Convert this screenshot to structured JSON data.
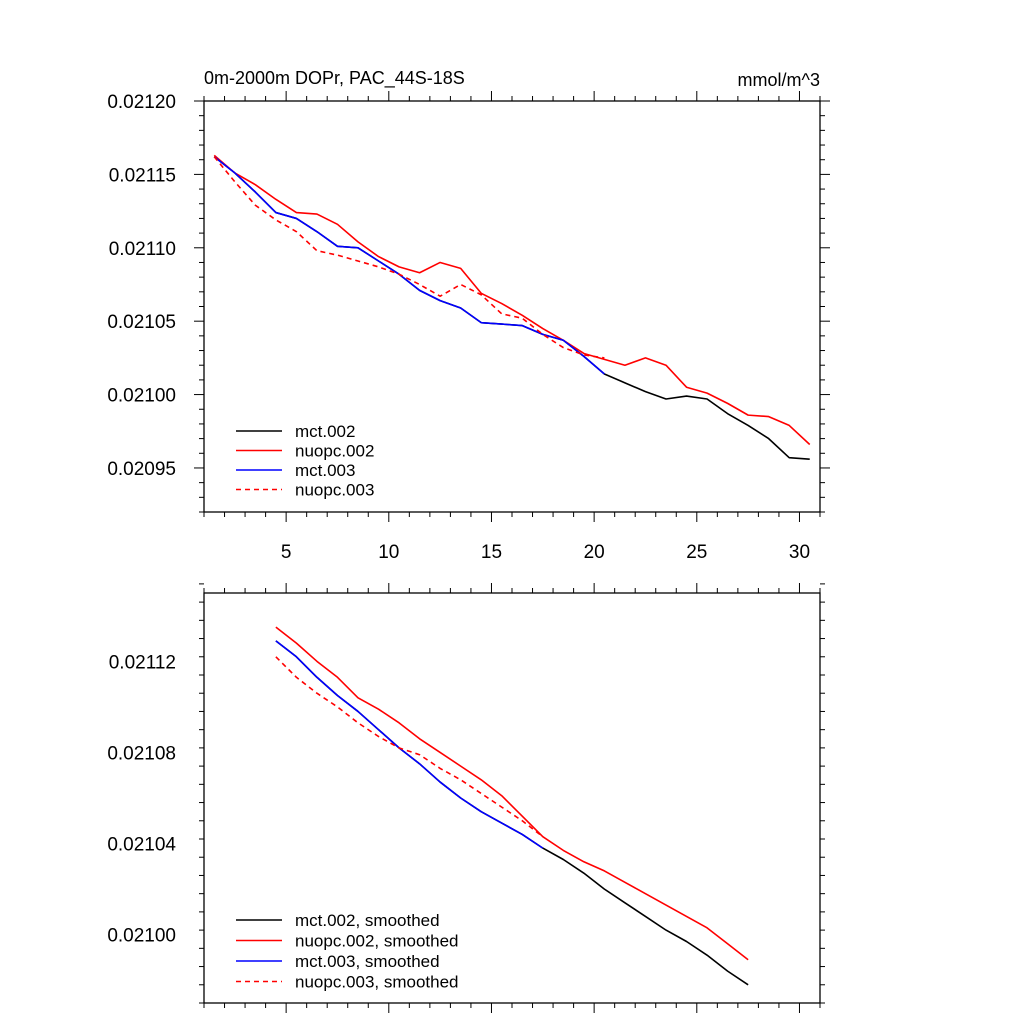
{
  "chart_data": [
    {
      "type": "line",
      "title": "0m-2000m DOPr, PAC_44S-18S",
      "units": "mmol/m^3",
      "xlabel": "",
      "ylabel": "",
      "xlim": [
        1,
        31
      ],
      "ylim": [
        0.02092,
        0.0212
      ],
      "x_ticks": [
        5,
        10,
        15,
        20,
        25,
        30
      ],
      "y_ticks": [
        0.02095,
        0.021,
        0.02105,
        0.0211,
        0.02115,
        0.0212
      ],
      "y_tick_labels": [
        "0.02095",
        "0.02100",
        "0.02105",
        "0.02110",
        "0.02115",
        "0.02120"
      ],
      "legend_position": "bottom-left",
      "series": [
        {
          "name": "mct.002",
          "color": "#000000",
          "dash": "solid",
          "x": [
            1.5,
            2.5,
            3.5,
            4.5,
            5.5,
            6.5,
            7.5,
            8.5,
            9.5,
            10.5,
            11.5,
            12.5,
            13.5,
            14.5,
            15.5,
            16.5,
            17.5,
            18.5,
            19.5,
            20.5,
            21.5,
            22.5,
            23.5,
            24.5,
            25.5,
            26.5,
            27.5,
            28.5,
            29.5,
            30.5
          ],
          "values": [
            0.021162,
            0.021151,
            0.021138,
            0.021124,
            0.02112,
            0.021111,
            0.021101,
            0.0211,
            0.021091,
            0.021082,
            0.021071,
            0.021064,
            0.021059,
            0.021049,
            0.021048,
            0.021047,
            0.021041,
            0.021037,
            0.021026,
            0.021014,
            0.021008,
            0.021002,
            0.020997,
            0.020999,
            0.020997,
            0.020987,
            0.020979,
            0.02097,
            0.020957,
            0.020956
          ]
        },
        {
          "name": "nuopc.002",
          "color": "#ff0000",
          "dash": "solid",
          "x": [
            1.5,
            2.5,
            3.5,
            4.5,
            5.5,
            6.5,
            7.5,
            8.5,
            9.5,
            10.5,
            11.5,
            12.5,
            13.5,
            14.5,
            15.5,
            16.5,
            17.5,
            18.5,
            19.5,
            20.5,
            21.5,
            22.5,
            23.5,
            24.5,
            25.5,
            26.5,
            27.5,
            28.5,
            29.5,
            30.5
          ],
          "values": [
            0.021163,
            0.021151,
            0.021143,
            0.021133,
            0.021124,
            0.021123,
            0.021116,
            0.021104,
            0.021094,
            0.021087,
            0.021083,
            0.02109,
            0.021086,
            0.021069,
            0.021062,
            0.021054,
            0.021045,
            0.021037,
            0.021028,
            0.021024,
            0.02102,
            0.021025,
            0.02102,
            0.021005,
            0.021001,
            0.020994,
            0.020986,
            0.020985,
            0.020979,
            0.020966
          ]
        },
        {
          "name": "mct.003",
          "color": "#0000ff",
          "dash": "solid",
          "x": [
            1.5,
            2.5,
            3.5,
            4.5,
            5.5,
            6.5,
            7.5,
            8.5,
            9.5,
            10.5,
            11.5,
            12.5,
            13.5,
            14.5,
            15.5,
            16.5,
            17.5,
            18.5,
            19.5,
            20.5
          ],
          "values": [
            0.021162,
            0.021151,
            0.021138,
            0.021124,
            0.02112,
            0.021111,
            0.021101,
            0.0211,
            0.021091,
            0.021082,
            0.021071,
            0.021064,
            0.021059,
            0.021049,
            0.021048,
            0.021047,
            0.021041,
            0.021037,
            0.021026,
            0.021014
          ]
        },
        {
          "name": "nuopc.003",
          "color": "#ff0000",
          "dash": "dashed",
          "x": [
            1.5,
            2.5,
            3.5,
            4.5,
            5.5,
            6.5,
            7.5,
            8.5,
            9.5,
            10.5,
            11.5,
            12.5,
            13.5,
            14.5,
            15.5,
            16.5,
            17.5,
            18.5,
            19.5,
            20.5
          ],
          "values": [
            0.021162,
            0.021145,
            0.021129,
            0.021119,
            0.021111,
            0.021098,
            0.021095,
            0.021091,
            0.021087,
            0.021082,
            0.021075,
            0.021067,
            0.021075,
            0.021068,
            0.021055,
            0.021052,
            0.021041,
            0.021032,
            0.021027,
            0.021025
          ]
        }
      ]
    },
    {
      "type": "line",
      "title": "",
      "xlabel": "",
      "ylabel": "",
      "xlim": [
        1,
        31
      ],
      "ylim": [
        0.02097,
        0.02115
      ],
      "x_ticks": [
        5,
        10,
        15,
        20,
        25,
        30
      ],
      "y_ticks": [
        0.021,
        0.02104,
        0.02108,
        0.02112
      ],
      "y_tick_labels": [
        "0.02100",
        "0.02104",
        "0.02108",
        "0.02112"
      ],
      "legend_position": "bottom-left",
      "series": [
        {
          "name": "mct.002, smoothed",
          "color": "#000000",
          "dash": "solid",
          "x": [
            4.5,
            5.5,
            6.5,
            7.5,
            8.5,
            9.5,
            10.5,
            11.5,
            12.5,
            13.5,
            14.5,
            15.5,
            16.5,
            17.5,
            18.5,
            19.5,
            20.5,
            21.5,
            22.5,
            23.5,
            24.5,
            25.5,
            26.5,
            27.5
          ],
          "values": [
            0.021129,
            0.021122,
            0.021113,
            0.021105,
            0.021098,
            0.02109,
            0.021082,
            0.021075,
            0.021067,
            0.02106,
            0.021054,
            0.021049,
            0.021044,
            0.021038,
            0.021033,
            0.021027,
            0.02102,
            0.021014,
            0.021008,
            0.021002,
            0.020997,
            0.020991,
            0.020984,
            0.020978
          ]
        },
        {
          "name": "nuopc.002, smoothed",
          "color": "#ff0000",
          "dash": "solid",
          "x": [
            4.5,
            5.5,
            6.5,
            7.5,
            8.5,
            9.5,
            10.5,
            11.5,
            12.5,
            13.5,
            14.5,
            15.5,
            16.5,
            17.5,
            18.5,
            19.5,
            20.5,
            21.5,
            22.5,
            23.5,
            24.5,
            25.5,
            26.5,
            27.5
          ],
          "values": [
            0.021135,
            0.021128,
            0.02112,
            0.021113,
            0.021104,
            0.021099,
            0.021093,
            0.021086,
            0.02108,
            0.021074,
            0.021068,
            0.021061,
            0.021052,
            0.021043,
            0.021037,
            0.021032,
            0.021028,
            0.021023,
            0.021018,
            0.021013,
            0.021008,
            0.021003,
            0.020996,
            0.020989
          ]
        },
        {
          "name": "mct.003, smoothed",
          "color": "#0000ff",
          "dash": "solid",
          "x": [
            4.5,
            5.5,
            6.5,
            7.5,
            8.5,
            9.5,
            10.5,
            11.5,
            12.5,
            13.5,
            14.5,
            15.5,
            16.5,
            17.5
          ],
          "values": [
            0.021129,
            0.021122,
            0.021113,
            0.021105,
            0.021098,
            0.02109,
            0.021082,
            0.021075,
            0.021067,
            0.02106,
            0.021054,
            0.021049,
            0.021044,
            0.021038
          ]
        },
        {
          "name": "nuopc.003, smoothed",
          "color": "#ff0000",
          "dash": "dashed",
          "x": [
            4.5,
            5.5,
            6.5,
            7.5,
            8.5,
            9.5,
            10.5,
            11.5,
            12.5,
            13.5,
            14.5,
            15.5,
            16.5,
            17.5
          ],
          "values": [
            0.021122,
            0.021113,
            0.021106,
            0.0211,
            0.021093,
            0.021087,
            0.021082,
            0.021079,
            0.021073,
            0.021068,
            0.021062,
            0.021056,
            0.02105,
            0.021043
          ]
        }
      ]
    }
  ]
}
